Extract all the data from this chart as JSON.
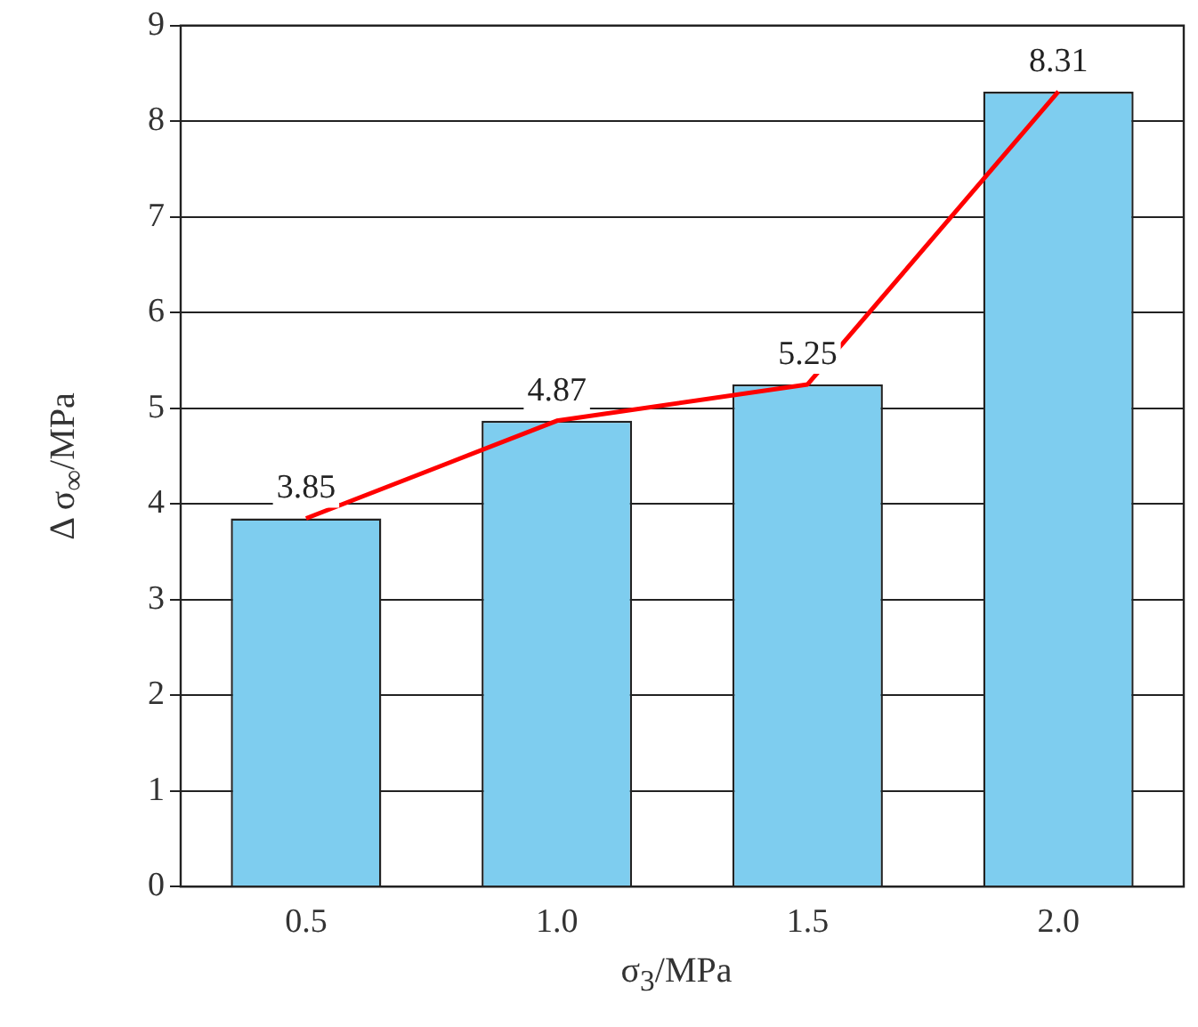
{
  "chart_data": {
    "type": "bar",
    "xlabel": "σ$_{3}$/MPa",
    "ylabel": "Δ σ$_{∞}$/MPa",
    "categories": [
      "0.5",
      "1.0",
      "1.5",
      "2.0"
    ],
    "series": [
      {
        "color": "#7ecdef",
        "values": [
          3.85,
          4.87,
          5.25,
          8.31
        ],
        "value_labels": [
          "3.85",
          "4.87",
          "5.25",
          "8.31"
        ]
      },
      {
        "type": "line",
        "color": "#ff0000",
        "values": [
          3.85,
          4.87,
          5.25,
          8.31
        ],
        "marker": "none"
      }
    ],
    "ylim": [
      0,
      9
    ],
    "yticks": [
      0,
      1,
      2,
      3,
      4,
      5,
      6,
      7,
      8,
      9
    ],
    "grid": "y"
  }
}
